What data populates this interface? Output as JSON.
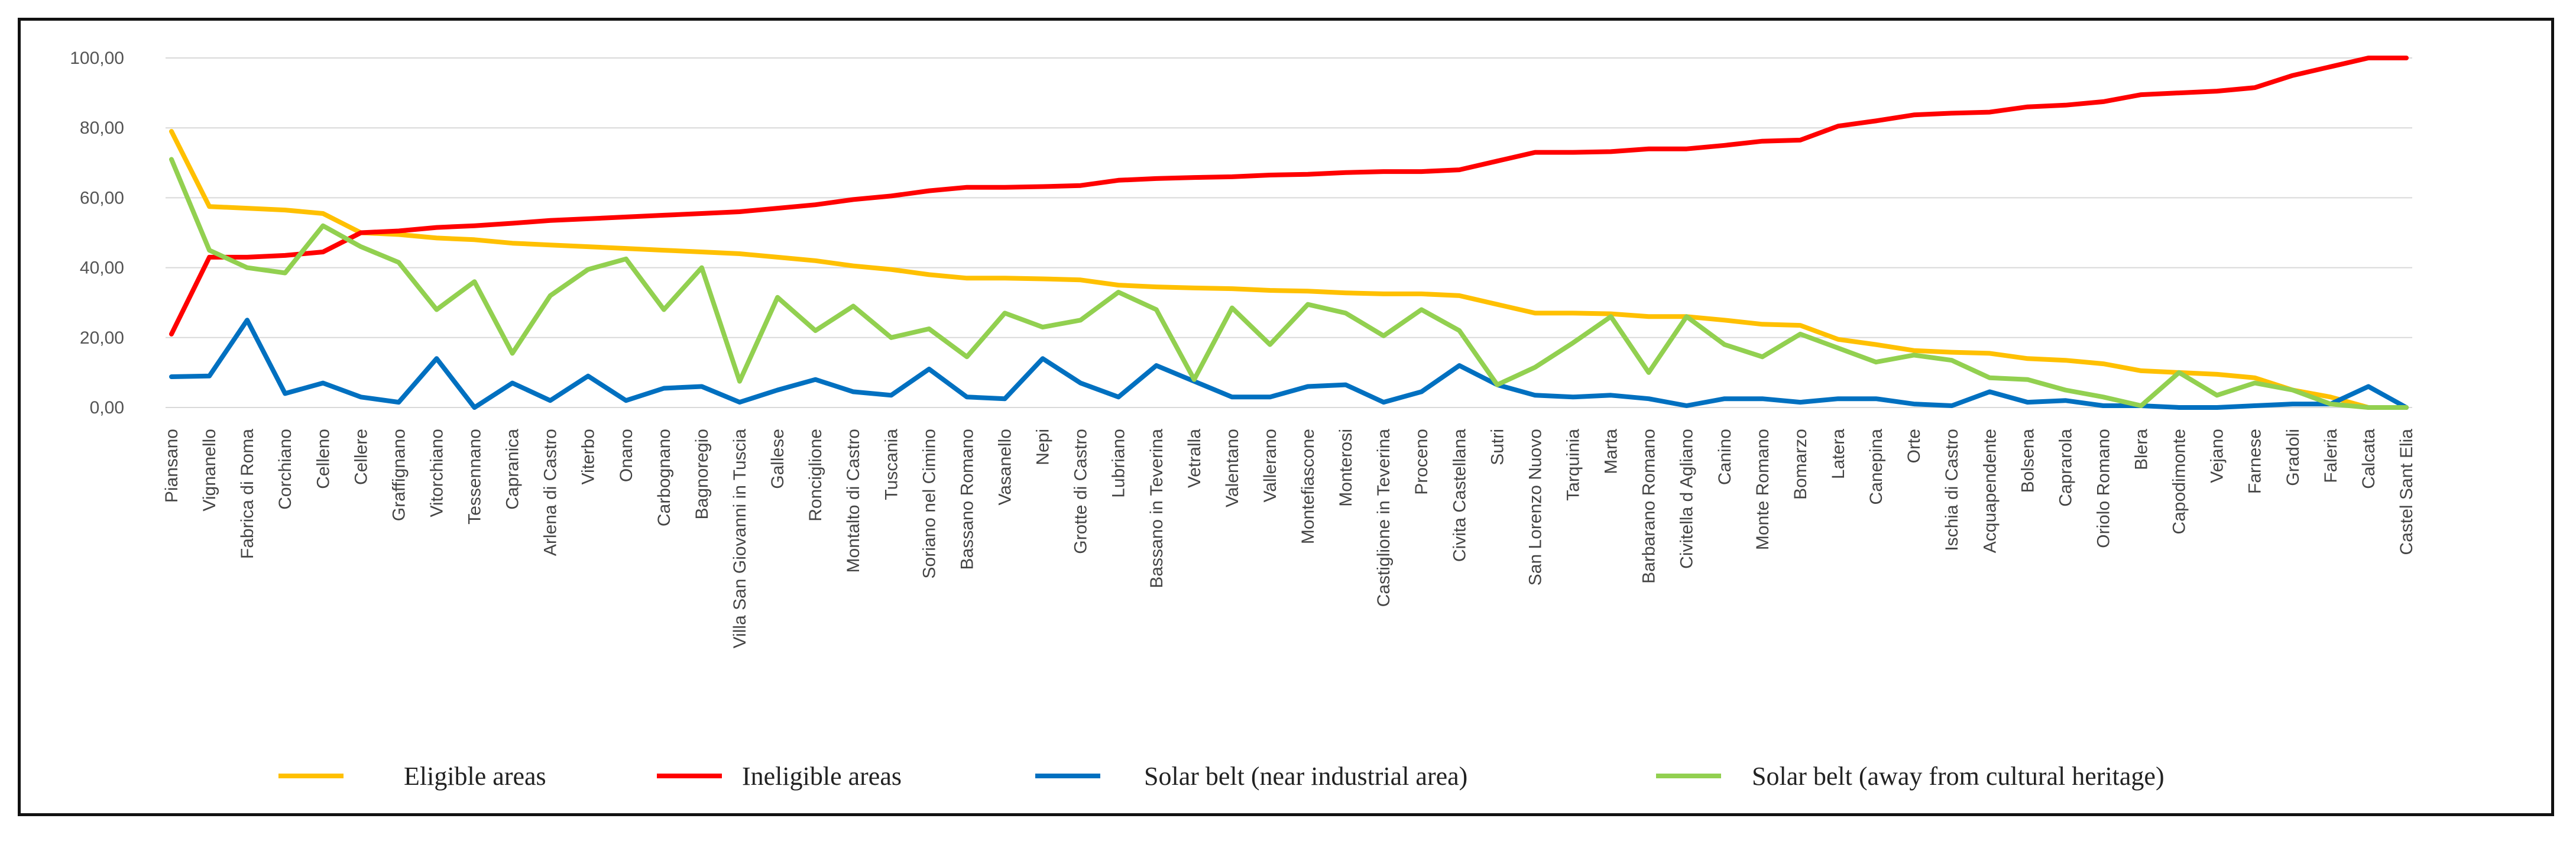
{
  "chart_data": {
    "type": "line",
    "title": "",
    "xlabel": "",
    "ylabel": "",
    "ylim": [
      0,
      100
    ],
    "yticks": [
      "0,00",
      "20,00",
      "40,00",
      "60,00",
      "80,00",
      "100,00"
    ],
    "grid": true,
    "legend_position": "bottom",
    "categories": [
      "Piansano",
      "Vignanello",
      "Fabrica di Roma",
      "Corchiano",
      "Celleno",
      "Cellere",
      "Graffignano",
      "Vitorchiano",
      "Tessennano",
      "Capranica",
      "Arlena di Castro",
      "Viterbo",
      "Onano",
      "Carbognano",
      "Bagnoregio",
      "Villa San Giovanni in Tuscia",
      "Gallese",
      "Ronciglione",
      "Montalto di Castro",
      "Tuscania",
      "Soriano nel Cimino",
      "Bassano Romano",
      "Vasanello",
      "Nepi",
      "Grotte di Castro",
      "Lubriano",
      "Bassano in Teverina",
      "Vetralla",
      "Valentano",
      "Vallerano",
      "Montefiascone",
      "Monterosi",
      "Castiglione in Teverina",
      "Proceno",
      "Civita Castellana",
      "Sutri",
      "San Lorenzo Nuovo",
      "Tarquinia",
      "Marta",
      "Barbarano Romano",
      "Civitella d Agliano",
      "Canino",
      "Monte Romano",
      "Bomarzo",
      "Latera",
      "Canepina",
      "Orte",
      "Ischia di Castro",
      "Acquapendente",
      "Bolsena",
      "Caprarola",
      "Oriolo Romano",
      "Blera",
      "Capodimonte",
      "Vejano",
      "Farnese",
      "Gradoli",
      "Faleria",
      "Calcata",
      "Castel Sant Elia"
    ],
    "series": [
      {
        "name": "Eligible areas",
        "color": "#FFC000",
        "values": [
          79,
          57.5,
          57,
          56.5,
          55.5,
          50,
          49.5,
          48.5,
          48,
          47,
          46.5,
          46,
          45.5,
          45,
          44.5,
          44,
          43,
          42,
          40.5,
          39.5,
          38,
          37,
          37,
          36.8,
          36.5,
          35,
          34.5,
          34.2,
          34,
          33.5,
          33.3,
          32.8,
          32.5,
          32.5,
          32,
          29.5,
          27,
          27,
          26.8,
          26,
          26,
          25,
          23.8,
          23.5,
          19.5,
          18,
          16.3,
          15.8,
          15.5,
          14,
          13.5,
          12.5,
          10.5,
          10,
          9.5,
          8.5,
          5,
          3,
          0,
          0
        ]
      },
      {
        "name": "Ineligible areas",
        "color": "#FF0000",
        "values": [
          21,
          43,
          43,
          43.5,
          44.5,
          50,
          50.5,
          51.5,
          52,
          52.7,
          53.5,
          54,
          54.5,
          55,
          55.5,
          56,
          57,
          58,
          59.5,
          60.5,
          62,
          63,
          63,
          63.2,
          63.5,
          65,
          65.5,
          65.8,
          66,
          66.5,
          66.7,
          67.2,
          67.5,
          67.5,
          68,
          70.5,
          73,
          73,
          73.2,
          74,
          74,
          75,
          76.2,
          76.5,
          80.5,
          82,
          83.7,
          84.2,
          84.5,
          86,
          86.5,
          87.5,
          89.5,
          90,
          90.5,
          91.5,
          95,
          97.5,
          100,
          100
        ]
      },
      {
        "name": "Solar belt (near industrial area)",
        "color": "#0070C0",
        "values": [
          8.8,
          9,
          25,
          4,
          7,
          3,
          1.5,
          14,
          0,
          7,
          2,
          9,
          2,
          5.5,
          6,
          1.5,
          5,
          8,
          4.5,
          3.5,
          11,
          3,
          2.5,
          14,
          7,
          3,
          12,
          7.5,
          3,
          3,
          6,
          6.5,
          1.5,
          4.5,
          12,
          6.5,
          3.5,
          3,
          3.5,
          2.5,
          0.5,
          2.5,
          2.5,
          1.5,
          2.5,
          2.5,
          1,
          0.5,
          4.5,
          1.5,
          2,
          0.5,
          0.5,
          0,
          0,
          0.5,
          1,
          1,
          6,
          0
        ]
      },
      {
        "name": "Solar belt (away from cultural heritage)",
        "color": "#92D050",
        "values": [
          71,
          45,
          40,
          38.5,
          52,
          46,
          41.5,
          28,
          36,
          15.5,
          32,
          39.5,
          42.5,
          28,
          40,
          7.5,
          31.5,
          22,
          29,
          20,
          22.5,
          14.5,
          27,
          23,
          25,
          33,
          28,
          8,
          28.5,
          18,
          29.5,
          27,
          20.5,
          28,
          22,
          6.5,
          11.5,
          18.5,
          26,
          10,
          26,
          18,
          14.5,
          21,
          17,
          13,
          15,
          13.5,
          8.5,
          8,
          5,
          3,
          0.5,
          10,
          3.5,
          7,
          5,
          1,
          0,
          0
        ]
      }
    ]
  }
}
